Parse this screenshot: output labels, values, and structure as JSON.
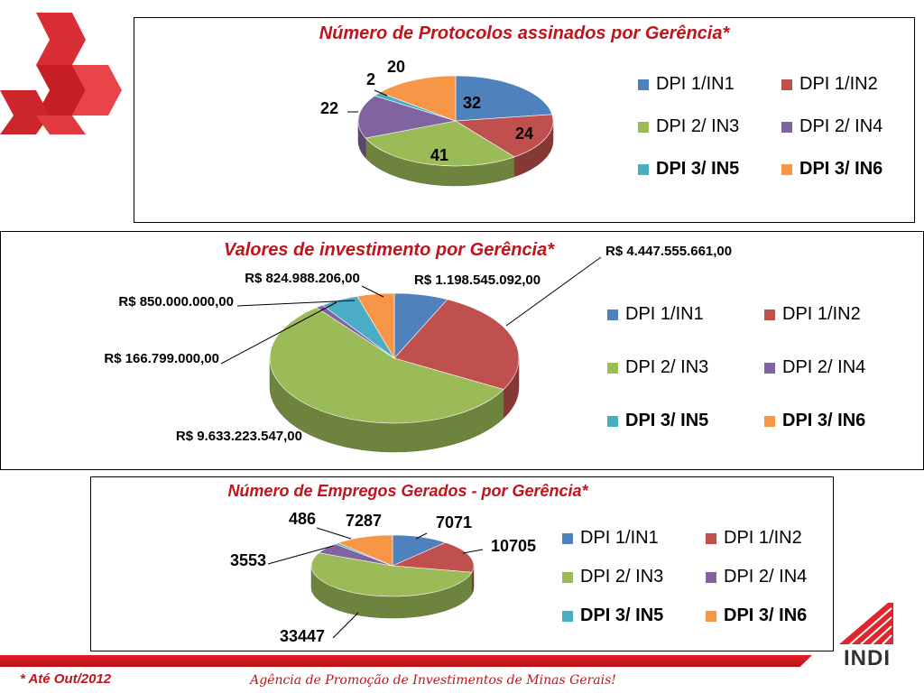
{
  "colors": [
    "#4f81bd",
    "#c0504d",
    "#9bbb59",
    "#8064a2",
    "#4bacc6",
    "#f79646"
  ],
  "chart_data": [
    {
      "type": "pie",
      "title": "Número de Protocolos assinados por Gerência*",
      "categories": [
        "DPI 1/IN1",
        "DPI 1/IN2",
        "DPI 2/ IN3",
        "DPI 2/ IN4",
        "DPI 3/ IN5",
        "DPI 3/ IN6"
      ],
      "values": [
        32,
        24,
        41,
        22,
        2,
        20
      ],
      "data_labels": [
        "32",
        "24",
        "41",
        "22",
        "2",
        "20"
      ],
      "legend_position": "right"
    },
    {
      "type": "pie",
      "title": "Valores de investimento por Gerência*",
      "categories": [
        "DPI 1/IN1",
        "DPI 1/IN2",
        "DPI 2/ IN3",
        "DPI 2/ IN4",
        "DPI 3/ IN5",
        "DPI 3/ IN6"
      ],
      "values": [
        1198545092,
        4447555661,
        9633223547,
        166799000,
        850000000,
        824988206
      ],
      "data_labels": [
        "R$ 1.198.545.092,00",
        "R$ 4.447.555.661,00",
        "R$ 9.633.223.547,00",
        "R$ 166.799.000,00",
        "R$ 850.000.000,00",
        "R$ 824.988.206,00"
      ],
      "legend_position": "right"
    },
    {
      "type": "pie",
      "title": "Número de Empregos Gerados -  por Gerência*",
      "categories": [
        "DPI 1/IN1",
        "DPI 1/IN2",
        "DPI 2/ IN3",
        "DPI 2/ IN4",
        "DPI 3/ IN5",
        "DPI 3/ IN6"
      ],
      "values": [
        7071,
        10705,
        33447,
        3553,
        486,
        7287
      ],
      "data_labels": [
        "7071",
        "10705",
        "33447",
        "3553",
        "486",
        "7287"
      ],
      "legend_position": "right"
    }
  ],
  "footer": {
    "note": "* Até Out/2012",
    "agency": "Agência de Promoção de  Investimentos de Minas Gerais!",
    "logo_text": "INDI"
  }
}
